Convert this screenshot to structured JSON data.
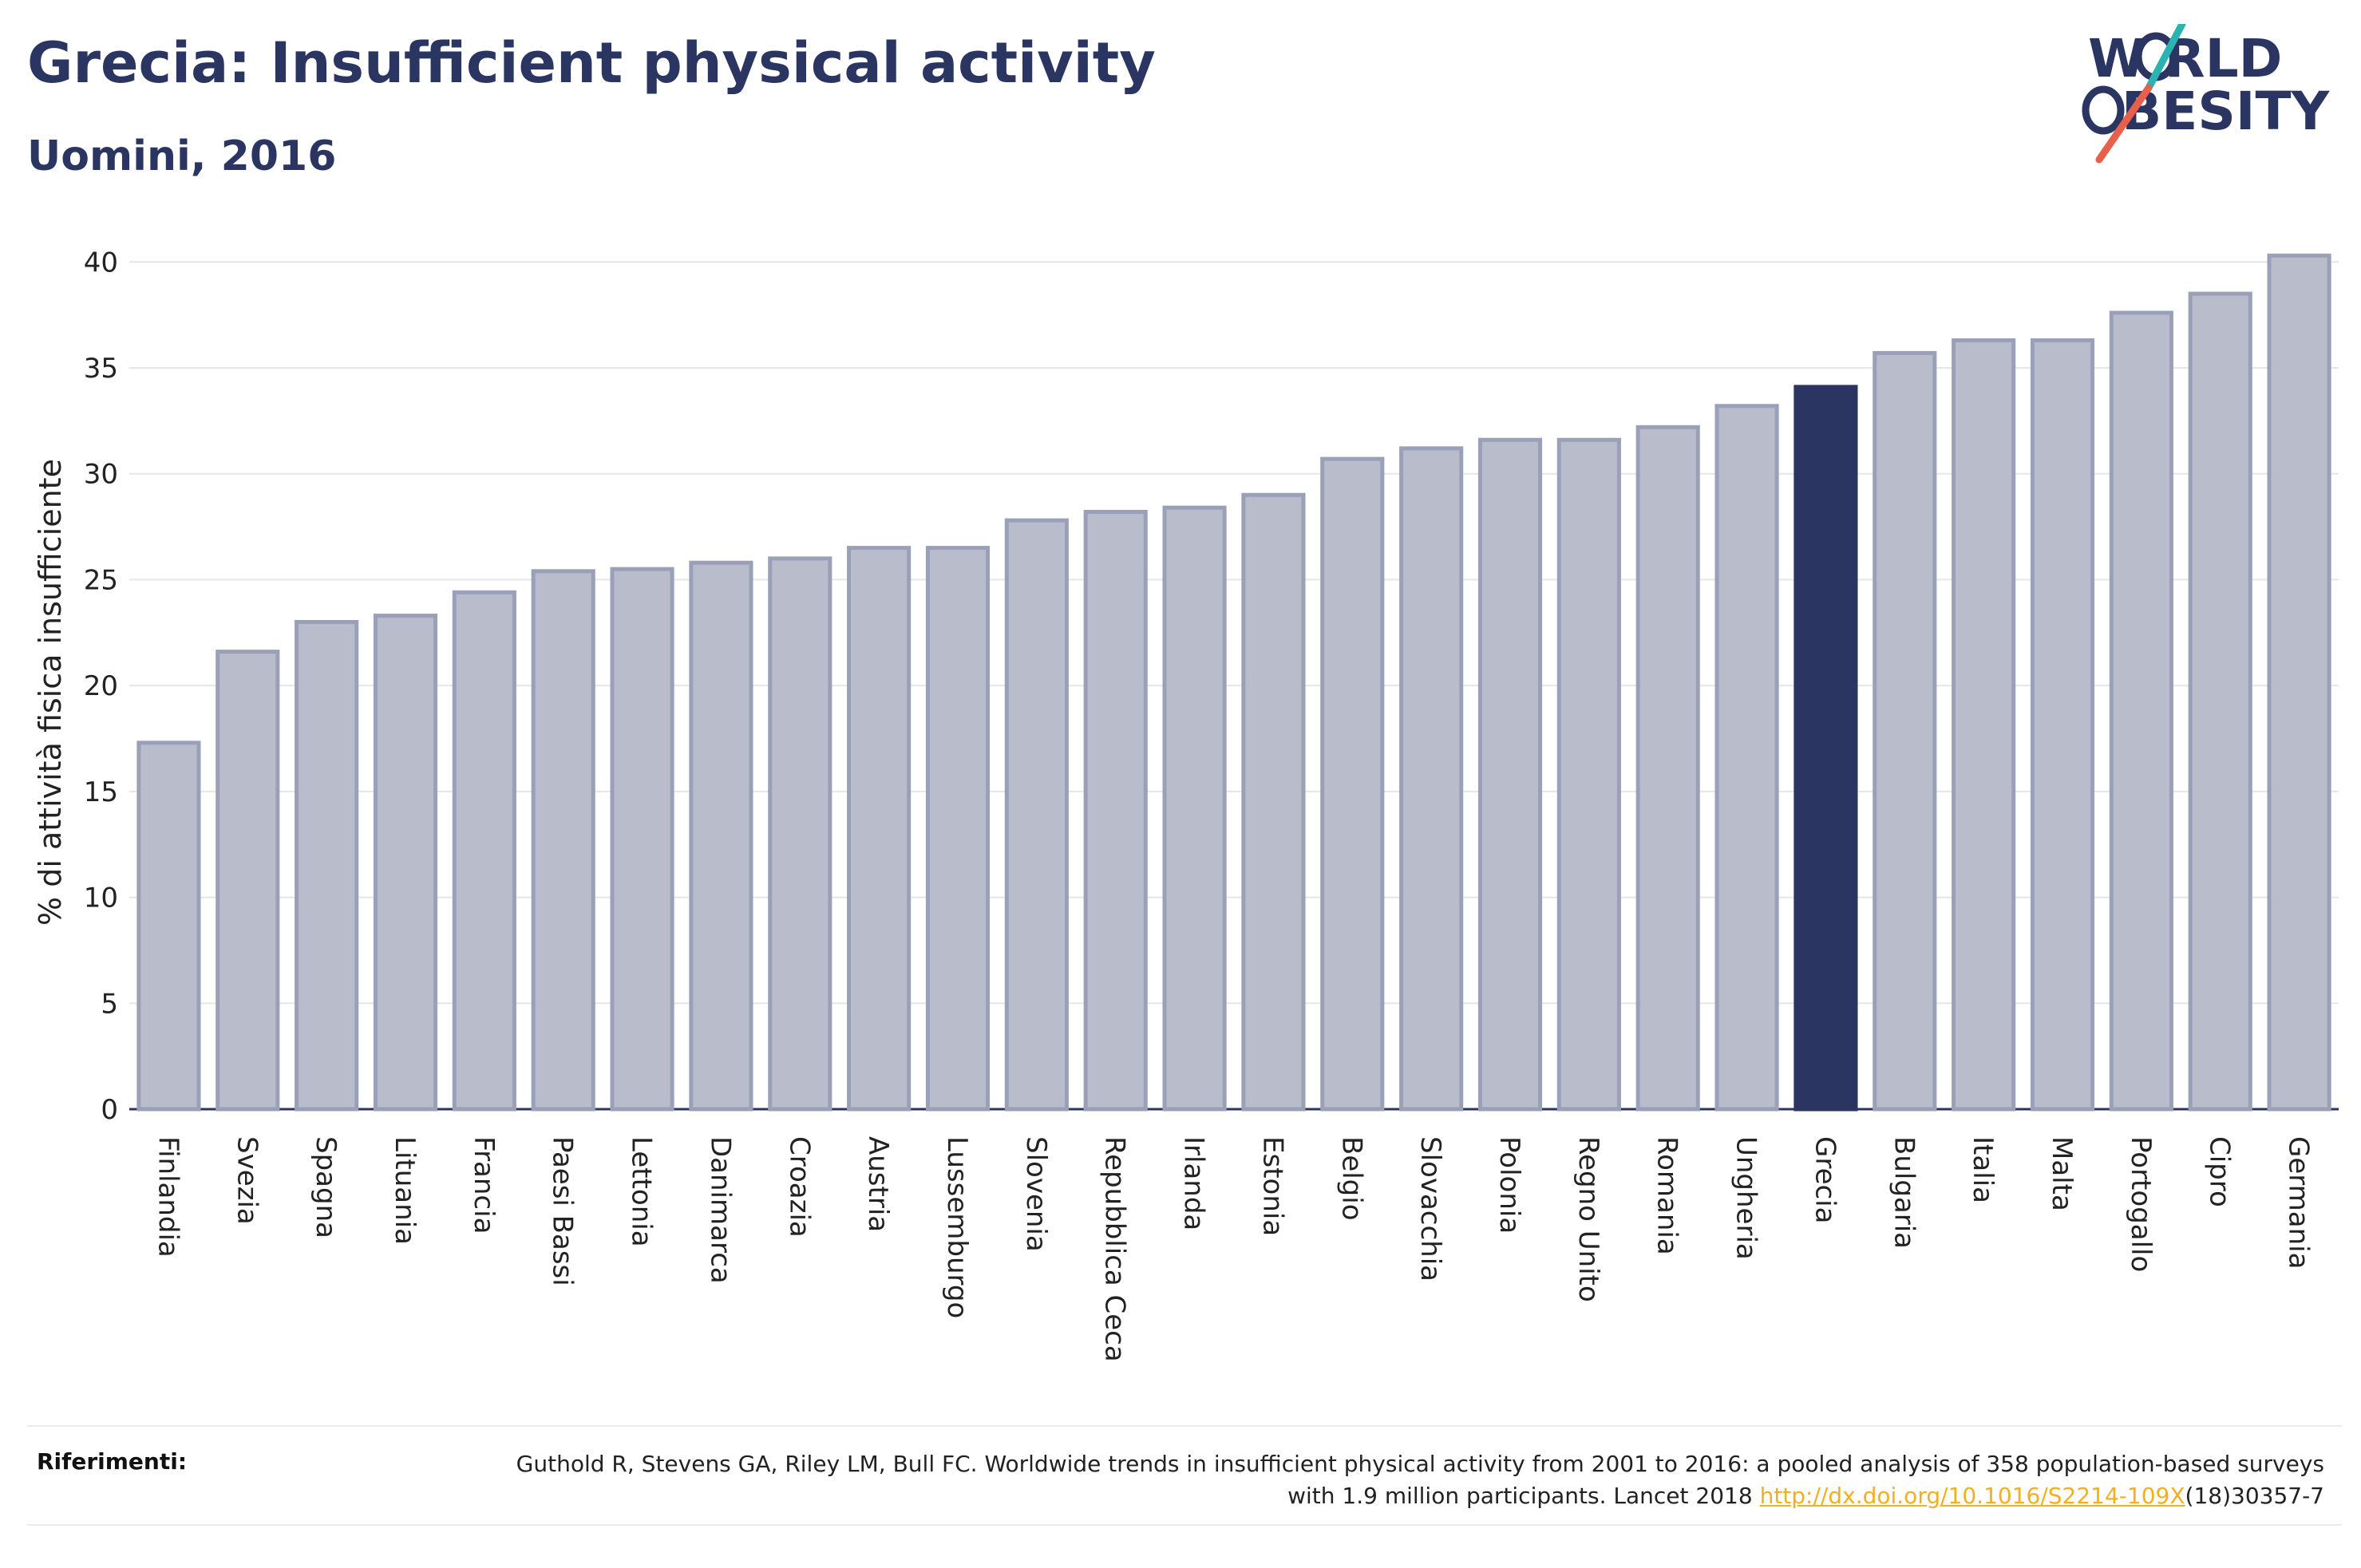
{
  "header": {
    "title": "Grecia: Insufficient physical activity",
    "subtitle": "Uomini, 2016"
  },
  "logo": {
    "line1": "W RLD",
    "line2": "BESITY",
    "brand_color": "#2b3561",
    "accent_red": "#e8604c",
    "accent_teal": "#2ab3b1"
  },
  "chart_data": {
    "type": "bar",
    "title": "Grecia: Insufficient physical activity",
    "subtitle": "Uomini, 2016",
    "xlabel": "",
    "ylabel": "% di attività fisica insufficiente",
    "ylim": [
      0,
      40.5
    ],
    "yticks": [
      0,
      5,
      10,
      15,
      20,
      25,
      30,
      35,
      40
    ],
    "grid": true,
    "highlight": "Grecia",
    "colors": {
      "default": "#b9bccb",
      "default_outline": "#9aa0b8",
      "highlight": "#2b3561"
    },
    "categories": [
      "Finlandia",
      "Svezia",
      "Spagna",
      "Lituania",
      "Francia",
      "Paesi Bassi",
      "Lettonia",
      "Danimarca",
      "Croazia",
      "Austria",
      "Lussemburgo",
      "Slovenia",
      "Repubblica Ceca",
      "Irlanda",
      "Estonia",
      "Belgio",
      "Slovacchia",
      "Polonia",
      "Regno Unito",
      "Romania",
      "Ungheria",
      "Grecia",
      "Bulgaria",
      "Italia",
      "Malta",
      "Portogallo",
      "Cipro",
      "Germania"
    ],
    "values": [
      17.3,
      21.6,
      23.0,
      23.3,
      24.4,
      25.4,
      25.5,
      25.8,
      26.0,
      26.5,
      26.5,
      27.8,
      28.2,
      28.4,
      29.0,
      30.7,
      31.2,
      31.6,
      31.6,
      32.2,
      33.2,
      34.1,
      35.7,
      36.3,
      36.3,
      37.6,
      38.5,
      40.3
    ]
  },
  "references": {
    "label": "Riferimenti:",
    "text_before": "Guthold R, Stevens GA, Riley LM, Bull FC. Worldwide trends in insufficient physical activity from 2001 to 2016: a pooled analysis of 358 population-based surveys with 1.9 million participants. Lancet 2018 ",
    "link": "http://dx.doi.org/10.1016/S2214-109X",
    "text_after": "(18)30357-7"
  }
}
